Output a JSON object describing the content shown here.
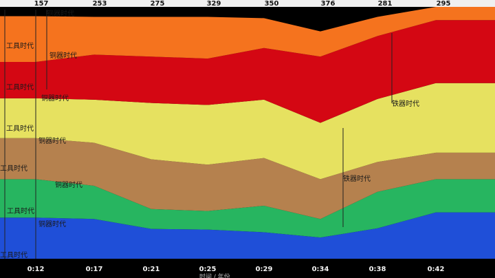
{
  "chart_data": {
    "type": "area",
    "stacked": true,
    "top_axis_ticks": [
      "157",
      "253",
      "275",
      "329",
      "350",
      "376",
      "281",
      "295"
    ],
    "x": [
      "0:12",
      "0:17",
      "0:21",
      "0:25",
      "0:29",
      "0:34",
      "0:38",
      "0:42"
    ],
    "series": [
      {
        "color": "#1f4fd8",
        "values": [
          62,
          60,
          45,
          44,
          40,
          32,
          46,
          70
        ]
      },
      {
        "color": "#27b560",
        "values": [
          58,
          50,
          30,
          28,
          40,
          28,
          55,
          50
        ]
      },
      {
        "color": "#b5814e",
        "values": [
          62,
          65,
          75,
          70,
          72,
          60,
          45,
          40
        ]
      },
      {
        "color": "#e6e160",
        "values": [
          60,
          65,
          85,
          90,
          88,
          85,
          95,
          105
        ]
      },
      {
        "color": "#d40713",
        "values": [
          55,
          68,
          70,
          70,
          78,
          100,
          95,
          95
        ]
      },
      {
        "color": "#f5731e",
        "values": [
          69,
          57,
          60,
          63,
          45,
          38,
          29,
          20
        ]
      }
    ],
    "annotations": [
      {
        "text": "工具时代"
      },
      {
        "text": "铜器时代"
      },
      {
        "text": "工具时代"
      },
      {
        "text": "铜器时代"
      },
      {
        "text": "工具时代"
      },
      {
        "text": "铜器时代"
      },
      {
        "text": "铁器时代"
      },
      {
        "text": "工具时代"
      },
      {
        "text": "铜器时代"
      },
      {
        "text": "铁器时代"
      },
      {
        "text": "工具时代"
      },
      {
        "text": "铜器时代"
      },
      {
        "text": "工具时代"
      },
      {
        "text": "铜器时代"
      }
    ],
    "footer_partial": "时间 / 年份"
  }
}
